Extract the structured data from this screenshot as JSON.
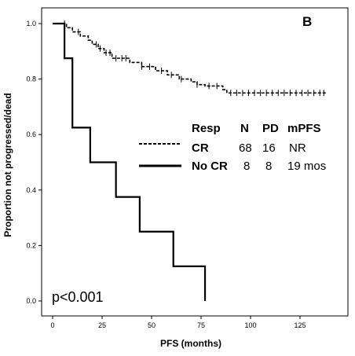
{
  "chart_data": {
    "type": "line",
    "panel_label": "B",
    "xlabel": "PFS (months)",
    "ylabel": "Proportion not progressed/dead",
    "xlim": [
      0,
      150
    ],
    "ylim": [
      0,
      1.0
    ],
    "x_ticks": [
      0,
      25,
      50,
      75,
      100,
      125
    ],
    "x_tick_labels": [
      "0",
      "25",
      "50",
      "75",
      "100",
      "125"
    ],
    "y_ticks": [
      0,
      0.2,
      0.4,
      0.6,
      0.8,
      1.0
    ],
    "y_tick_labels": [
      "0.0",
      "0.2",
      "0.4",
      "0.6",
      "0.8",
      "1.0"
    ],
    "series": [
      {
        "name": "CR",
        "line_style": "dashed",
        "color": "#000000",
        "x": [
          0,
          7,
          10,
          14,
          18,
          20,
          23,
          26,
          30,
          39,
          45,
          52,
          58,
          64,
          70,
          73,
          77,
          86,
          88,
          138
        ],
        "y": [
          1.0,
          0.985,
          0.97,
          0.955,
          0.94,
          0.925,
          0.91,
          0.895,
          0.875,
          0.86,
          0.845,
          0.83,
          0.815,
          0.8,
          0.79,
          0.78,
          0.775,
          0.762,
          0.75,
          0.75
        ],
        "censor_x": [
          6,
          13,
          22,
          24,
          27,
          29,
          32,
          35,
          37,
          45,
          49,
          55,
          60,
          65,
          73,
          79,
          83,
          90,
          93,
          96,
          99,
          102,
          105,
          108,
          111,
          114,
          117,
          120,
          123,
          126,
          129,
          132,
          135,
          137
        ],
        "censor_y": [
          1.0,
          0.97,
          0.925,
          0.91,
          0.895,
          0.895,
          0.875,
          0.875,
          0.875,
          0.845,
          0.845,
          0.83,
          0.815,
          0.8,
          0.78,
          0.775,
          0.775,
          0.75,
          0.75,
          0.75,
          0.75,
          0.75,
          0.75,
          0.75,
          0.75,
          0.75,
          0.75,
          0.75,
          0.75,
          0.75,
          0.75,
          0.75,
          0.75,
          0.75
        ]
      },
      {
        "name": "No CR",
        "line_style": "solid",
        "color": "#000000",
        "x": [
          0,
          6,
          10,
          19,
          32,
          44,
          61,
          77
        ],
        "y": [
          1.0,
          0.875,
          0.625,
          0.5,
          0.375,
          0.25,
          0.125,
          0.0
        ]
      }
    ],
    "legend_table": {
      "headers": [
        "Resp",
        "N",
        "PD",
        "mPFS"
      ],
      "rows": [
        {
          "resp": "CR",
          "n": "68",
          "pd": "16",
          "mpfs": "NR"
        },
        {
          "resp": "No CR",
          "n": "8",
          "pd": "8",
          "mpfs": "19 mos"
        }
      ]
    },
    "annotation": "p<0.001",
    "grid": false
  }
}
